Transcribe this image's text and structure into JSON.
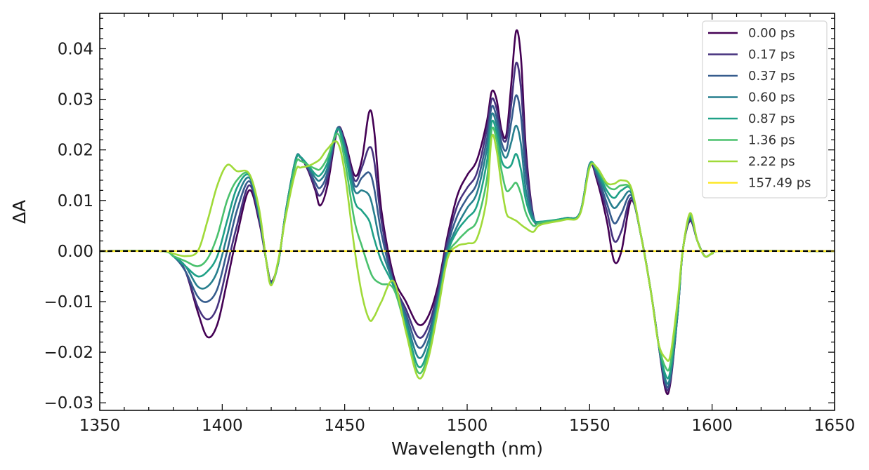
{
  "chart_data": {
    "type": "line",
    "title": "",
    "xlabel": "Wavelength (nm)",
    "ylabel": "ΔA",
    "xlim": [
      1350,
      1650
    ],
    "ylim": [
      -0.0315,
      0.047
    ],
    "xticks": [
      1350,
      1400,
      1450,
      1500,
      1550,
      1600,
      1650
    ],
    "xtick_labels": [
      "1350",
      "1400",
      "1450",
      "1500",
      "1550",
      "1600",
      "1650"
    ],
    "yticks": [
      -0.03,
      -0.02,
      -0.01,
      0.0,
      0.01,
      0.02,
      0.03,
      0.04
    ],
    "ytick_labels": [
      "−0.03",
      "−0.02",
      "−0.01",
      "0.00",
      "0.01",
      "0.02",
      "0.03",
      "0.04"
    ],
    "grid": false,
    "legend_position": "top-right",
    "zero_line": {
      "y": 0,
      "style": "dashed",
      "color": "#000000"
    },
    "colors": [
      "#440154",
      "#46327e",
      "#365c8d",
      "#277f8e",
      "#1fa187",
      "#4ac16d",
      "#a0da39",
      "#fde725"
    ],
    "series": [
      {
        "name": "0.00 ps",
        "x": [
          1350,
          1375,
          1380,
          1385,
          1390,
          1394,
          1398,
          1402,
          1406,
          1411,
          1415,
          1418,
          1420,
          1423,
          1426,
          1430,
          1432,
          1435,
          1438,
          1440,
          1443,
          1447,
          1450,
          1454,
          1457,
          1460,
          1462,
          1465,
          1470,
          1475,
          1480,
          1484,
          1488,
          1492,
          1496,
          1500,
          1504,
          1508,
          1510,
          1512,
          1514,
          1516,
          1518,
          1520,
          1522,
          1524,
          1527,
          1530,
          1540,
          1546,
          1550,
          1553,
          1557,
          1560,
          1563,
          1567,
          1571,
          1575,
          1578,
          1581,
          1583,
          1586,
          1588,
          1591,
          1594,
          1597,
          1600,
          1605,
          1650
        ],
        "y": [
          0,
          0,
          -0.001,
          -0.004,
          -0.012,
          -0.017,
          -0.0145,
          -0.006,
          0.003,
          0.012,
          0.006,
          -0.002,
          -0.006,
          -0.002,
          0.008,
          0.018,
          0.0185,
          0.016,
          0.012,
          0.009,
          0.013,
          0.024,
          0.022,
          0.015,
          0.018,
          0.0275,
          0.024,
          0.008,
          -0.005,
          -0.01,
          -0.0145,
          -0.013,
          -0.007,
          0.003,
          0.011,
          0.015,
          0.018,
          0.0255,
          0.0315,
          0.03,
          0.024,
          0.023,
          0.033,
          0.0435,
          0.038,
          0.02,
          0.007,
          0.0055,
          0.0065,
          0.0075,
          0.017,
          0.014,
          0.006,
          -0.002,
          0,
          0.01,
          0.003,
          -0.008,
          -0.018,
          -0.0275,
          -0.026,
          -0.012,
          0,
          0.006,
          0.002,
          -0.001,
          -0.0005,
          0,
          0
        ]
      },
      {
        "name": "0.17 ps",
        "x": [
          1350,
          1375,
          1380,
          1385,
          1390,
          1394,
          1398,
          1402,
          1406,
          1411,
          1415,
          1418,
          1420,
          1423,
          1426,
          1430,
          1432,
          1435,
          1438,
          1440,
          1443,
          1447,
          1450,
          1454,
          1457,
          1460,
          1462,
          1465,
          1470,
          1475,
          1480,
          1484,
          1488,
          1492,
          1496,
          1500,
          1504,
          1508,
          1510,
          1512,
          1514,
          1516,
          1518,
          1520,
          1522,
          1524,
          1527,
          1530,
          1540,
          1546,
          1550,
          1553,
          1557,
          1560,
          1563,
          1567,
          1571,
          1575,
          1578,
          1581,
          1583,
          1586,
          1588,
          1591,
          1594,
          1597,
          1600,
          1605,
          1650
        ],
        "y": [
          0,
          0,
          -0.001,
          -0.004,
          -0.011,
          -0.0135,
          -0.011,
          -0.003,
          0.005,
          0.013,
          0.0065,
          -0.002,
          -0.0062,
          -0.002,
          0.008,
          0.018,
          0.0185,
          0.0162,
          0.0125,
          0.011,
          0.0145,
          0.0242,
          0.0215,
          0.014,
          0.0165,
          0.0205,
          0.018,
          0.006,
          -0.006,
          -0.0115,
          -0.017,
          -0.015,
          -0.008,
          0.002,
          0.009,
          0.0125,
          0.0155,
          0.024,
          0.03,
          0.0282,
          0.023,
          0.022,
          0.029,
          0.0372,
          0.032,
          0.018,
          0.0068,
          0.0056,
          0.0065,
          0.0075,
          0.0172,
          0.0145,
          0.008,
          0.002,
          0.004,
          0.0105,
          0.003,
          -0.008,
          -0.018,
          -0.0268,
          -0.0255,
          -0.012,
          0,
          0.0062,
          0.002,
          -0.001,
          -0.0005,
          0,
          0
        ]
      },
      {
        "name": "0.37 ps",
        "x": [
          1350,
          1375,
          1380,
          1385,
          1390,
          1394,
          1398,
          1402,
          1406,
          1411,
          1415,
          1418,
          1420,
          1423,
          1426,
          1430,
          1432,
          1435,
          1438,
          1440,
          1443,
          1447,
          1450,
          1454,
          1457,
          1460,
          1462,
          1465,
          1470,
          1475,
          1480,
          1484,
          1488,
          1492,
          1496,
          1500,
          1504,
          1508,
          1510,
          1512,
          1514,
          1516,
          1518,
          1520,
          1522,
          1524,
          1527,
          1530,
          1540,
          1546,
          1550,
          1553,
          1557,
          1560,
          1563,
          1567,
          1571,
          1575,
          1578,
          1581,
          1583,
          1586,
          1588,
          1591,
          1594,
          1597,
          1600,
          1605,
          1650
        ],
        "y": [
          0,
          0,
          -0.001,
          -0.004,
          -0.009,
          -0.01,
          -0.0075,
          0,
          0.008,
          0.0138,
          0.007,
          -0.002,
          -0.0063,
          -0.002,
          0.008,
          0.0182,
          0.0186,
          0.0165,
          0.0135,
          0.0125,
          0.0155,
          0.0243,
          0.021,
          0.013,
          0.0145,
          0.0155,
          0.0125,
          0.0035,
          -0.0065,
          -0.0125,
          -0.019,
          -0.0165,
          -0.009,
          0.001,
          0.007,
          0.0105,
          0.0135,
          0.022,
          0.0285,
          0.0265,
          0.0215,
          0.02,
          0.0255,
          0.0308,
          0.0265,
          0.015,
          0.0068,
          0.0057,
          0.0065,
          0.0075,
          0.0172,
          0.015,
          0.0095,
          0.0055,
          0.0075,
          0.011,
          0.003,
          -0.008,
          -0.018,
          -0.0262,
          -0.025,
          -0.012,
          0,
          0.0065,
          0.002,
          -0.001,
          -0.0005,
          0,
          0
        ]
      },
      {
        "name": "0.60 ps",
        "x": [
          1350,
          1375,
          1380,
          1385,
          1390,
          1394,
          1398,
          1402,
          1406,
          1411,
          1415,
          1418,
          1420,
          1423,
          1426,
          1430,
          1432,
          1435,
          1438,
          1440,
          1443,
          1447,
          1450,
          1454,
          1457,
          1460,
          1462,
          1465,
          1470,
          1475,
          1480,
          1484,
          1488,
          1492,
          1496,
          1500,
          1504,
          1508,
          1510,
          1512,
          1514,
          1516,
          1518,
          1520,
          1522,
          1524,
          1527,
          1530,
          1540,
          1546,
          1550,
          1553,
          1557,
          1560,
          1563,
          1567,
          1571,
          1575,
          1578,
          1581,
          1583,
          1586,
          1588,
          1591,
          1594,
          1597,
          1600,
          1605,
          1650
        ],
        "y": [
          0,
          0,
          -0.001,
          -0.003,
          -0.007,
          -0.007,
          -0.004,
          0.003,
          0.0105,
          0.0145,
          0.0075,
          -0.002,
          -0.0065,
          -0.002,
          0.008,
          0.0182,
          0.0186,
          0.0168,
          0.0145,
          0.014,
          0.0165,
          0.0242,
          0.0205,
          0.012,
          0.012,
          0.011,
          0.0075,
          0.0005,
          -0.0065,
          -0.0135,
          -0.021,
          -0.018,
          -0.01,
          0,
          0.005,
          0.0085,
          0.0115,
          0.02,
          0.027,
          0.025,
          0.02,
          0.0185,
          0.0215,
          0.0248,
          0.021,
          0.012,
          0.0065,
          0.0058,
          0.0065,
          0.0075,
          0.0172,
          0.0155,
          0.011,
          0.0085,
          0.01,
          0.0115,
          0.003,
          -0.008,
          -0.018,
          -0.0255,
          -0.0245,
          -0.012,
          0,
          0.0067,
          0.002,
          -0.001,
          -0.0005,
          0,
          0
        ]
      },
      {
        "name": "0.87 ps",
        "x": [
          1350,
          1375,
          1380,
          1385,
          1390,
          1394,
          1398,
          1402,
          1406,
          1411,
          1415,
          1418,
          1420,
          1423,
          1426,
          1430,
          1432,
          1435,
          1438,
          1440,
          1443,
          1447,
          1450,
          1454,
          1457,
          1460,
          1462,
          1465,
          1470,
          1475,
          1480,
          1484,
          1488,
          1492,
          1496,
          1500,
          1504,
          1508,
          1510,
          1512,
          1514,
          1516,
          1518,
          1520,
          1522,
          1524,
          1527,
          1530,
          1540,
          1546,
          1550,
          1553,
          1557,
          1560,
          1563,
          1567,
          1571,
          1575,
          1578,
          1581,
          1583,
          1586,
          1588,
          1591,
          1594,
          1597,
          1600,
          1605,
          1650
        ],
        "y": [
          0,
          0,
          -0.001,
          -0.003,
          -0.005,
          -0.004,
          -0.001,
          0.006,
          0.0125,
          0.015,
          0.008,
          -0.002,
          -0.0066,
          -0.002,
          0.0078,
          0.018,
          0.0185,
          0.017,
          0.0152,
          0.015,
          0.0175,
          0.024,
          0.0198,
          0.01,
          0.008,
          0.006,
          0.0025,
          -0.002,
          -0.007,
          -0.0145,
          -0.0228,
          -0.0195,
          -0.0105,
          -0.0005,
          0.004,
          0.0065,
          0.009,
          0.0175,
          0.0255,
          0.0235,
          0.018,
          0.0165,
          0.017,
          0.0192,
          0.016,
          0.01,
          0.006,
          0.0058,
          0.0065,
          0.0075,
          0.017,
          0.016,
          0.012,
          0.0105,
          0.012,
          0.012,
          0.003,
          -0.008,
          -0.018,
          -0.0245,
          -0.0235,
          -0.011,
          0,
          0.0069,
          0.002,
          -0.001,
          -0.0005,
          0,
          0
        ]
      },
      {
        "name": "1.36 ps",
        "x": [
          1350,
          1375,
          1380,
          1385,
          1390,
          1394,
          1398,
          1402,
          1406,
          1411,
          1415,
          1418,
          1420,
          1423,
          1426,
          1430,
          1432,
          1435,
          1438,
          1440,
          1443,
          1447,
          1450,
          1454,
          1457,
          1460,
          1462,
          1465,
          1470,
          1475,
          1480,
          1484,
          1488,
          1492,
          1496,
          1500,
          1504,
          1508,
          1510,
          1512,
          1514,
          1516,
          1518,
          1520,
          1522,
          1524,
          1527,
          1530,
          1540,
          1546,
          1550,
          1553,
          1557,
          1560,
          1563,
          1567,
          1571,
          1575,
          1578,
          1581,
          1583,
          1586,
          1588,
          1591,
          1594,
          1597,
          1600,
          1605,
          1650
        ],
        "y": [
          0,
          0,
          -0.001,
          -0.002,
          -0.003,
          -0.0015,
          0.003,
          0.01,
          0.014,
          0.0152,
          0.0082,
          -0.002,
          -0.0067,
          -0.0018,
          0.0075,
          0.0172,
          0.0178,
          0.017,
          0.0163,
          0.0162,
          0.0185,
          0.0232,
          0.018,
          0.006,
          0.001,
          -0.0035,
          -0.0055,
          -0.0065,
          -0.0075,
          -0.0155,
          -0.024,
          -0.0205,
          -0.0112,
          -0.001,
          0.002,
          0.004,
          0.006,
          0.014,
          0.024,
          0.022,
          0.016,
          0.012,
          0.0125,
          0.0135,
          0.0112,
          0.0075,
          0.005,
          0.0056,
          0.0063,
          0.0073,
          0.0168,
          0.0162,
          0.013,
          0.0122,
          0.013,
          0.012,
          0.003,
          -0.008,
          -0.018,
          -0.023,
          -0.0222,
          -0.0105,
          0,
          0.0071,
          0.002,
          -0.001,
          -0.0005,
          0,
          0
        ]
      },
      {
        "name": "2.22 ps",
        "x": [
          1350,
          1375,
          1380,
          1385,
          1390,
          1394,
          1398,
          1402,
          1406,
          1411,
          1415,
          1418,
          1420,
          1423,
          1426,
          1430,
          1432,
          1435,
          1438,
          1440,
          1443,
          1447,
          1450,
          1454,
          1457,
          1460,
          1462,
          1465,
          1470,
          1475,
          1480,
          1484,
          1488,
          1492,
          1496,
          1500,
          1504,
          1508,
          1510,
          1512,
          1514,
          1516,
          1518,
          1520,
          1522,
          1524,
          1527,
          1530,
          1540,
          1546,
          1550,
          1553,
          1557,
          1560,
          1563,
          1567,
          1571,
          1575,
          1578,
          1581,
          1583,
          1586,
          1588,
          1591,
          1594,
          1597,
          1600,
          1605,
          1650
        ],
        "y": [
          0,
          0,
          -0.0005,
          -0.001,
          0,
          0.006,
          0.013,
          0.017,
          0.0158,
          0.0153,
          0.0085,
          -0.002,
          -0.0068,
          -0.0015,
          0.007,
          0.0158,
          0.0165,
          0.0168,
          0.0175,
          0.0182,
          0.0202,
          0.0215,
          0.0155,
          0.0005,
          -0.0085,
          -0.0135,
          -0.013,
          -0.01,
          -0.006,
          -0.016,
          -0.025,
          -0.0215,
          -0.012,
          -0.0015,
          0.001,
          0.0015,
          0.0025,
          0.0105,
          0.0225,
          0.02,
          0.013,
          0.0075,
          0.0065,
          0.006,
          0.0052,
          0.0045,
          0.0038,
          0.0052,
          0.0062,
          0.0072,
          0.0165,
          0.0165,
          0.0135,
          0.0133,
          0.014,
          0.0125,
          0.003,
          -0.008,
          -0.018,
          -0.0212,
          -0.0205,
          -0.0095,
          0,
          0.0075,
          0.002,
          -0.001,
          -0.0005,
          0,
          0
        ]
      },
      {
        "name": "157.49 ps",
        "x": [
          1350,
          1650
        ],
        "y": [
          0,
          0
        ]
      }
    ]
  }
}
